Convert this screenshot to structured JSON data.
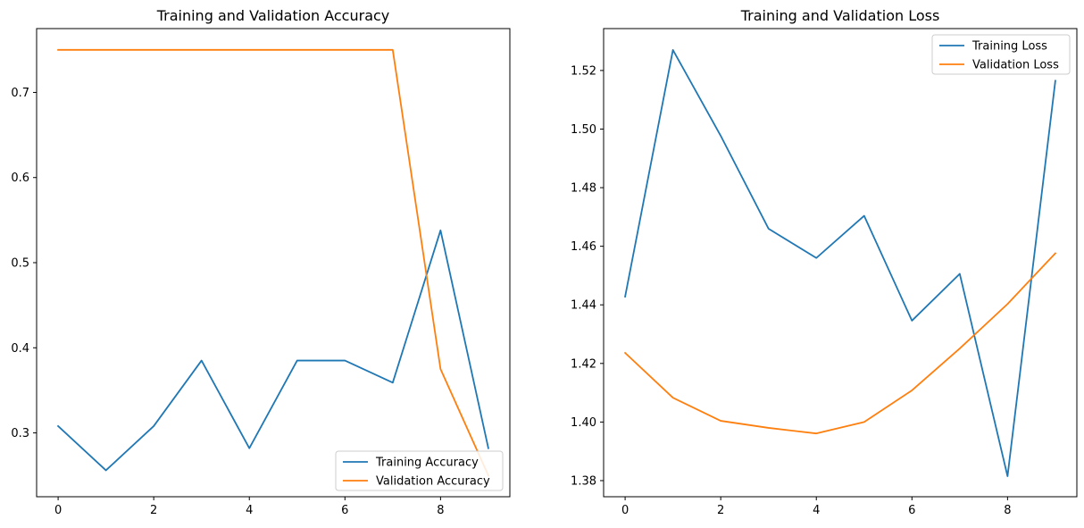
{
  "chart_data": [
    {
      "type": "line",
      "title": "Training and Validation Accuracy",
      "xlabel": "",
      "ylabel": "",
      "x": [
        0,
        1,
        2,
        3,
        4,
        5,
        6,
        7,
        8,
        9
      ],
      "xlim": [
        -0.45,
        9.45
      ],
      "ylim": [
        0.225,
        0.775
      ],
      "xticks": [
        0,
        2,
        4,
        6,
        8
      ],
      "yticks": [
        0.3,
        0.4,
        0.5,
        0.6,
        0.7
      ],
      "ytick_labels": [
        "0.3",
        "0.4",
        "0.5",
        "0.6",
        "0.7"
      ],
      "grid": false,
      "legend_position": "lower right",
      "series": [
        {
          "name": "Training Accuracy",
          "color": "#1f77b4",
          "values": [
            0.308,
            0.256,
            0.308,
            0.385,
            0.282,
            0.385,
            0.385,
            0.359,
            0.538,
            0.282
          ]
        },
        {
          "name": "Validation Accuracy",
          "color": "#ff7f0e",
          "values": [
            0.75,
            0.75,
            0.75,
            0.75,
            0.75,
            0.75,
            0.75,
            0.75,
            0.375,
            0.25
          ]
        }
      ]
    },
    {
      "type": "line",
      "title": "Training and Validation Loss",
      "xlabel": "",
      "ylabel": "",
      "x": [
        0,
        1,
        2,
        3,
        4,
        5,
        6,
        7,
        8,
        9
      ],
      "xlim": [
        -0.45,
        9.45
      ],
      "ylim": [
        1.3745,
        1.5343
      ],
      "xticks": [
        0,
        2,
        4,
        6,
        8
      ],
      "yticks": [
        1.38,
        1.4,
        1.42,
        1.44,
        1.46,
        1.48,
        1.5,
        1.52
      ],
      "ytick_labels": [
        "1.38",
        "1.40",
        "1.42",
        "1.44",
        "1.46",
        "1.48",
        "1.50",
        "1.52"
      ],
      "grid": false,
      "legend_position": "upper right",
      "series": [
        {
          "name": "Training Loss",
          "color": "#1f77b4",
          "values": [
            1.4428,
            1.527,
            1.4977,
            1.466,
            1.456,
            1.4704,
            1.4346,
            1.4506,
            1.3815,
            1.5165
          ]
        },
        {
          "name": "Validation Loss",
          "color": "#ff7f0e",
          "values": [
            1.4236,
            1.4083,
            1.4004,
            1.398,
            1.3961,
            1.4,
            1.4108,
            1.4251,
            1.4403,
            1.4576
          ]
        }
      ]
    }
  ]
}
